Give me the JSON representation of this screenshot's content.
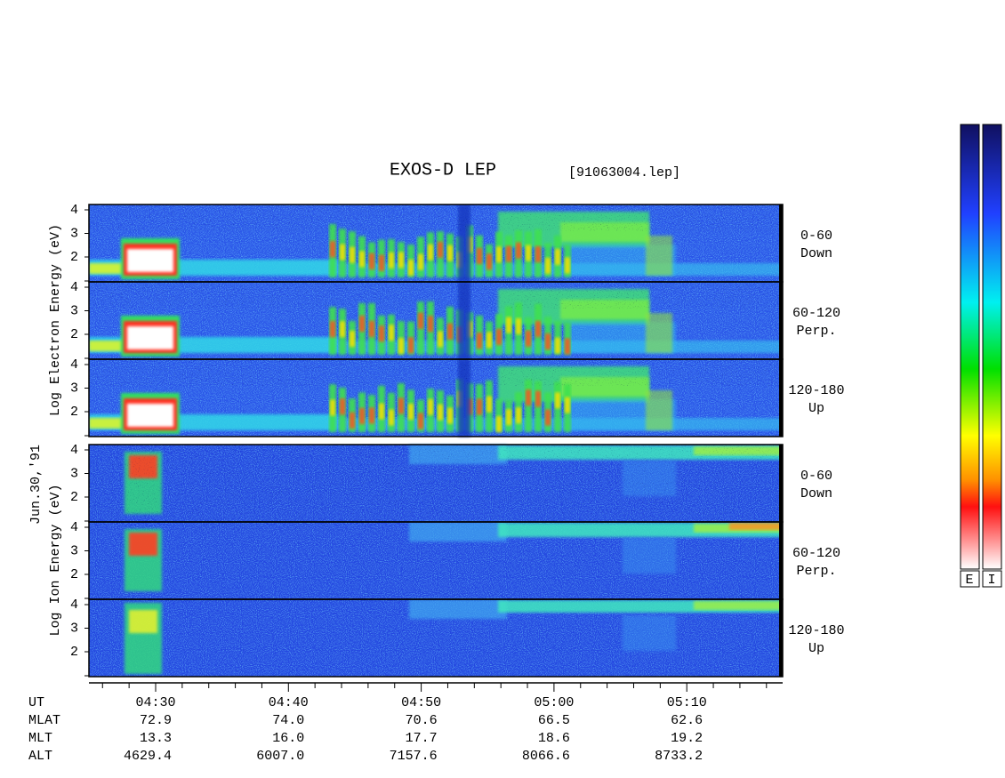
{
  "title": "EXOS-D LEP",
  "file": "[91063004.lep]",
  "date": "Jun.30,'91",
  "electron": {
    "axis_label": "Log  Electron  Energy (eV)",
    "panels": [
      {
        "angle": "0-60",
        "direction": "Down",
        "yticks": [
          4,
          3,
          2
        ]
      },
      {
        "angle": "60-120",
        "direction": "Perp.",
        "yticks": [
          4,
          3,
          2
        ]
      },
      {
        "angle": "120-180",
        "direction": "Up",
        "yticks": [
          4,
          3,
          2
        ]
      }
    ]
  },
  "ion": {
    "axis_label": "Log  Ion  Energy (eV)",
    "panels": [
      {
        "angle": "0-60",
        "direction": "Down",
        "yticks": [
          4,
          3,
          2
        ]
      },
      {
        "angle": "60-120",
        "direction": "Perp.",
        "yticks": [
          4,
          3,
          2
        ]
      },
      {
        "angle": "120-180",
        "direction": "Up",
        "yticks": [
          4,
          3,
          2
        ]
      }
    ]
  },
  "ephemeris": {
    "labels": [
      "UT",
      "MLAT",
      "MLT",
      "ALT"
    ],
    "rows": [
      [
        "04:30",
        "04:40",
        "04:50",
        "05:00",
        "05:10"
      ],
      [
        "72.9",
        "74.0",
        "70.6",
        "66.5",
        "62.6"
      ],
      [
        "13.3",
        "16.0",
        "17.7",
        "18.6",
        "19.2"
      ],
      [
        "4629.4",
        "6007.0",
        "7157.6",
        "8066.6",
        "8733.2"
      ]
    ]
  },
  "colorbars": [
    "E",
    "I"
  ]
}
